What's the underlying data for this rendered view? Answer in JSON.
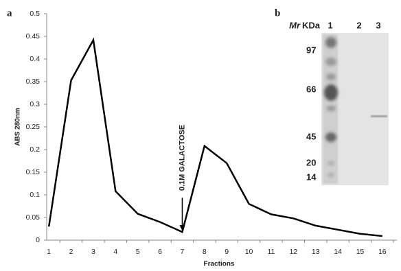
{
  "chart_data": {
    "type": "line",
    "panel_label": "a",
    "y_label": "ABS 280nm",
    "x_label": "Fractions",
    "categories": [
      "1",
      "2",
      "3",
      "4",
      "5",
      "6",
      "7",
      "8",
      "9",
      "10",
      "11",
      "12",
      "13",
      "14",
      "15",
      "16"
    ],
    "values": [
      0.03,
      0.353,
      0.442,
      0.108,
      0.058,
      0.04,
      0.018,
      0.208,
      0.17,
      0.08,
      0.057,
      0.048,
      0.032,
      0.023,
      0.014,
      0.009
    ],
    "color": "#000000",
    "ylim": [
      0,
      0.5
    ],
    "yticks": [
      0,
      0.05,
      0.1,
      0.15,
      0.2,
      0.25,
      0.3,
      0.35,
      0.4,
      0.45,
      0.5
    ],
    "grid": false,
    "annotation": {
      "text": "0.1M GALACTOSE",
      "category_index": 6
    }
  },
  "gel": {
    "panel_label": "b",
    "mr": "Mr",
    "unit": "KDa",
    "lanes": [
      "1",
      "2",
      "3"
    ],
    "markers": [
      "97",
      "66",
      "45",
      "20",
      "14"
    ]
  }
}
